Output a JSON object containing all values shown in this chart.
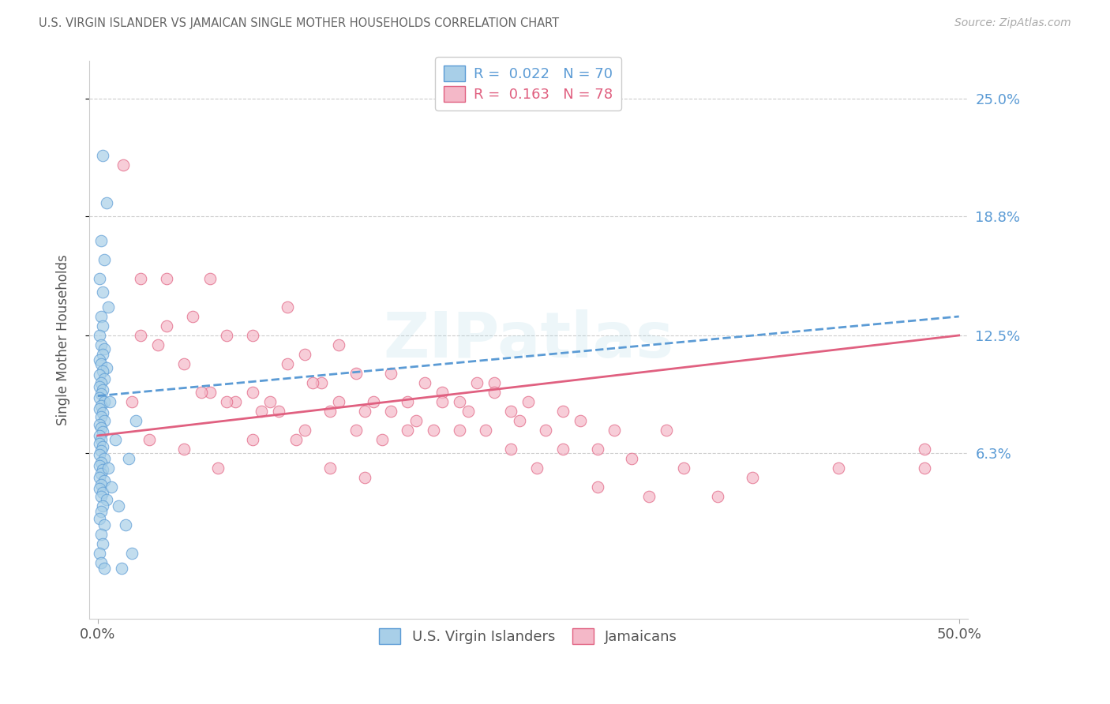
{
  "title": "U.S. VIRGIN ISLANDER VS JAMAICAN SINGLE MOTHER HOUSEHOLDS CORRELATION CHART",
  "source": "Source: ZipAtlas.com",
  "ylabel": "Single Mother Households",
  "blue_color": "#a8cfe8",
  "blue_edge_color": "#5b9bd5",
  "pink_color": "#f4b8c8",
  "pink_edge_color": "#e06080",
  "blue_line_color": "#5b9bd5",
  "pink_line_color": "#e06080",
  "title_color": "#666666",
  "right_label_color": "#5b9bd5",
  "grid_color": "#cccccc",
  "watermark_color": "#add8e6",
  "xlim": [
    0.0,
    0.5
  ],
  "ylim": [
    -0.025,
    0.27
  ],
  "ytick_values": [
    0.063,
    0.125,
    0.188,
    0.25
  ],
  "ytick_labels": [
    "6.3%",
    "12.5%",
    "18.8%",
    "25.0%"
  ],
  "xtick_values": [
    0.0,
    0.5
  ],
  "xtick_labels": [
    "0.0%",
    "50.0%"
  ],
  "vi_line_x0": 0.0,
  "vi_line_y0": 0.093,
  "vi_line_x1": 0.5,
  "vi_line_y1": 0.135,
  "ja_line_x0": 0.0,
  "ja_line_y0": 0.072,
  "ja_line_x1": 0.5,
  "ja_line_y1": 0.125,
  "vi_x": [
    0.003,
    0.005,
    0.002,
    0.004,
    0.001,
    0.003,
    0.006,
    0.002,
    0.003,
    0.001,
    0.002,
    0.004,
    0.003,
    0.001,
    0.002,
    0.005,
    0.003,
    0.001,
    0.004,
    0.002,
    0.001,
    0.003,
    0.002,
    0.001,
    0.004,
    0.002,
    0.001,
    0.003,
    0.002,
    0.004,
    0.001,
    0.002,
    0.003,
    0.001,
    0.002,
    0.001,
    0.003,
    0.002,
    0.001,
    0.004,
    0.002,
    0.001,
    0.003,
    0.002,
    0.001,
    0.004,
    0.002,
    0.001,
    0.003,
    0.002,
    0.005,
    0.003,
    0.002,
    0.001,
    0.004,
    0.002,
    0.003,
    0.001,
    0.002,
    0.004,
    0.014,
    0.02,
    0.016,
    0.012,
    0.008,
    0.006,
    0.018,
    0.01,
    0.022,
    0.007
  ],
  "vi_y": [
    0.22,
    0.195,
    0.175,
    0.165,
    0.155,
    0.148,
    0.14,
    0.135,
    0.13,
    0.125,
    0.12,
    0.118,
    0.115,
    0.112,
    0.11,
    0.108,
    0.106,
    0.104,
    0.102,
    0.1,
    0.098,
    0.096,
    0.094,
    0.092,
    0.09,
    0.088,
    0.086,
    0.084,
    0.082,
    0.08,
    0.078,
    0.076,
    0.074,
    0.072,
    0.07,
    0.068,
    0.066,
    0.064,
    0.062,
    0.06,
    0.058,
    0.056,
    0.054,
    0.052,
    0.05,
    0.048,
    0.046,
    0.044,
    0.042,
    0.04,
    0.038,
    0.035,
    0.032,
    0.028,
    0.025,
    0.02,
    0.015,
    0.01,
    0.005,
    0.002,
    0.002,
    0.01,
    0.025,
    0.035,
    0.045,
    0.055,
    0.06,
    0.07,
    0.08,
    0.09
  ],
  "ja_x": [
    0.015,
    0.025,
    0.04,
    0.055,
    0.065,
    0.075,
    0.09,
    0.1,
    0.11,
    0.12,
    0.13,
    0.14,
    0.15,
    0.16,
    0.17,
    0.18,
    0.19,
    0.2,
    0.21,
    0.22,
    0.23,
    0.24,
    0.25,
    0.27,
    0.29,
    0.31,
    0.34,
    0.38,
    0.43,
    0.48,
    0.02,
    0.035,
    0.05,
    0.065,
    0.08,
    0.095,
    0.11,
    0.125,
    0.14,
    0.155,
    0.17,
    0.185,
    0.2,
    0.215,
    0.23,
    0.245,
    0.26,
    0.28,
    0.3,
    0.33,
    0.025,
    0.04,
    0.06,
    0.075,
    0.09,
    0.105,
    0.12,
    0.135,
    0.15,
    0.165,
    0.18,
    0.195,
    0.21,
    0.225,
    0.24,
    0.255,
    0.27,
    0.29,
    0.32,
    0.36,
    0.03,
    0.05,
    0.07,
    0.09,
    0.115,
    0.135,
    0.155,
    0.48
  ],
  "ja_y": [
    0.215,
    0.155,
    0.155,
    0.135,
    0.155,
    0.125,
    0.125,
    0.09,
    0.14,
    0.115,
    0.1,
    0.12,
    0.105,
    0.09,
    0.105,
    0.09,
    0.1,
    0.095,
    0.09,
    0.1,
    0.1,
    0.085,
    0.09,
    0.085,
    0.065,
    0.06,
    0.055,
    0.05,
    0.055,
    0.065,
    0.09,
    0.12,
    0.11,
    0.095,
    0.09,
    0.085,
    0.11,
    0.1,
    0.09,
    0.085,
    0.085,
    0.08,
    0.09,
    0.085,
    0.095,
    0.08,
    0.075,
    0.08,
    0.075,
    0.075,
    0.125,
    0.13,
    0.095,
    0.09,
    0.095,
    0.085,
    0.075,
    0.085,
    0.075,
    0.07,
    0.075,
    0.075,
    0.075,
    0.075,
    0.065,
    0.055,
    0.065,
    0.045,
    0.04,
    0.04,
    0.07,
    0.065,
    0.055,
    0.07,
    0.07,
    0.055,
    0.05,
    0.055
  ]
}
